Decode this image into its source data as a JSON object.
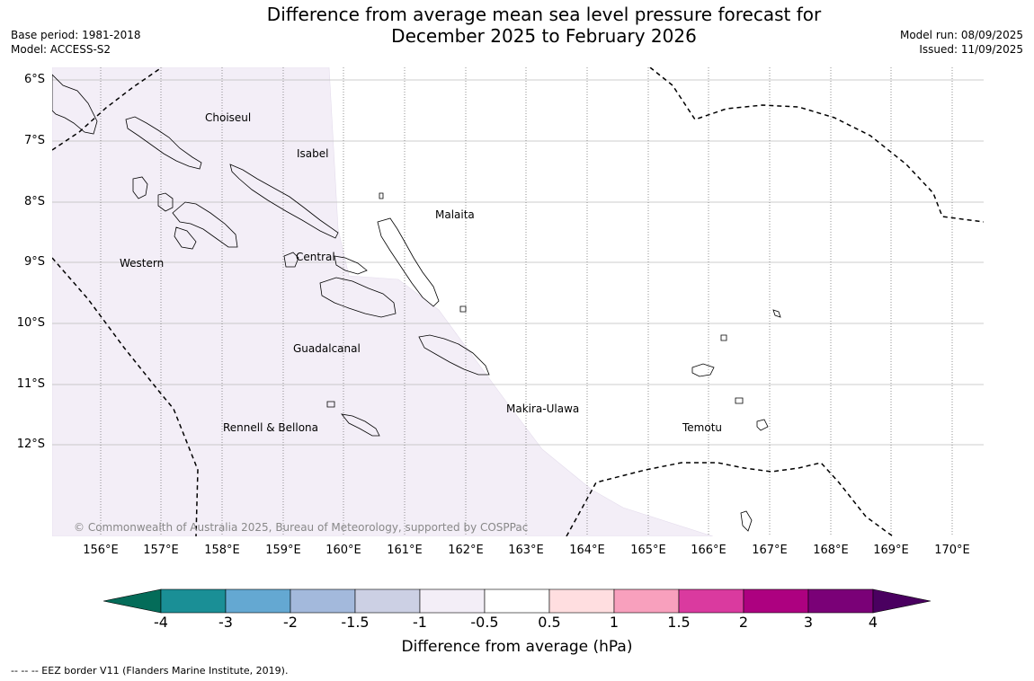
{
  "title_line1": "Difference from average mean sea level pressure forecast for",
  "title_line2": "December 2025 to February 2026",
  "base_period": "Base period: 1981-2018",
  "model": "Model: ACCESS-S2",
  "model_run": "Model run: 08/09/2025",
  "issued": "Issued: 11/09/2025",
  "latitudes": [
    "6°S",
    "7°S",
    "8°S",
    "9°S",
    "10°S",
    "11°S",
    "12°S"
  ],
  "longitudes": [
    "156°E",
    "157°E",
    "158°E",
    "159°E",
    "160°E",
    "161°E",
    "162°E",
    "163°E",
    "164°E",
    "165°E",
    "166°E",
    "167°E",
    "168°E",
    "169°E",
    "170°E"
  ],
  "regions": {
    "choiseul": "Choiseul",
    "isabel": "Isabel",
    "malaita": "Malaita",
    "western": "Western",
    "central": "Central",
    "guadalcanal": "Guadalcanal",
    "makira": "Makira-Ulawa",
    "rennell": "Rennell & Bellona",
    "temotu": "Temotu"
  },
  "copyright": "© Commonwealth of Australia 2025, Bureau of Meteorology, supported by COSPPac",
  "colorbar": {
    "ticks": [
      "-4",
      "-3",
      "-2",
      "-1.5",
      "-1",
      "-0.5",
      "0.5",
      "1",
      "1.5",
      "2",
      "3",
      "4"
    ],
    "colors": [
      "#1a8f96",
      "#64a8d2",
      "#a3b9dc",
      "#ccd0e4",
      "#f3eef7",
      "#ffffff",
      "#ffdee0",
      "#f8a0bd",
      "#da3a9f",
      "#ad0180",
      "#7a0177"
    ],
    "under_color": "#046c59",
    "over_color": "#4a0060",
    "label": "Difference from average (hPa)"
  },
  "footnote": "--  --  -- EEZ border V11 (Flanders Marine Institute, 2019)."
}
